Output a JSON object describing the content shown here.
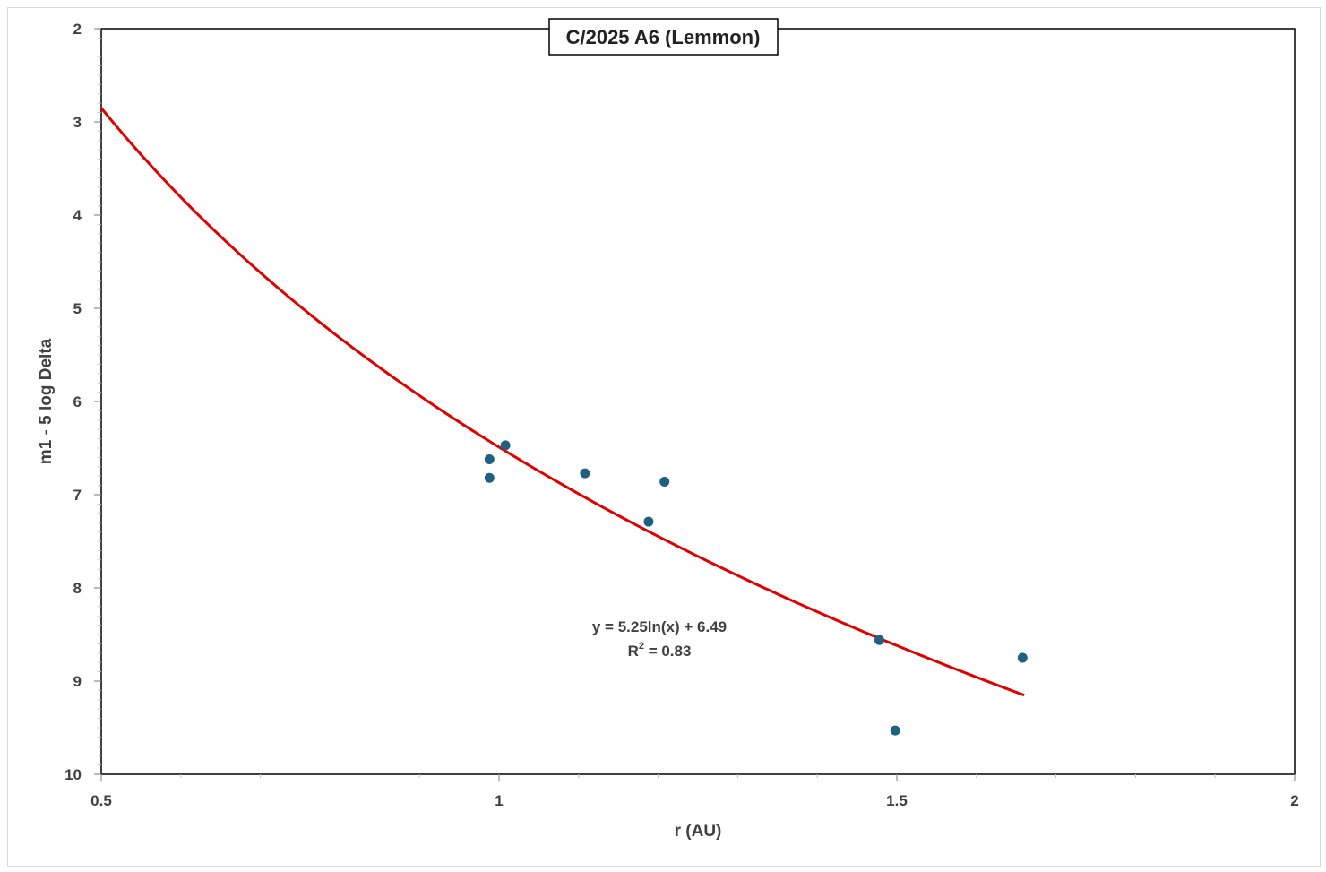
{
  "chart_data": {
    "type": "scatter",
    "title": "C/2025 A6 (Lemmon)",
    "xlabel": "r (AU)",
    "ylabel": "m1 - 5 log Delta",
    "xlim": [
      0.5,
      2
    ],
    "ylim": [
      2,
      10
    ],
    "y_inverted": true,
    "x_ticks": [
      "0.5",
      "1",
      "1.5",
      "2"
    ],
    "y_ticks": [
      "2",
      "3",
      "4",
      "5",
      "6",
      "7",
      "8",
      "9",
      "10"
    ],
    "grid": false,
    "legend": "none",
    "series": [
      {
        "x": [
          0.988,
          0.988,
          1.008,
          1.108,
          1.188,
          1.208,
          1.478,
          1.498,
          1.658
        ],
        "y": [
          6.62,
          6.82,
          6.47,
          6.77,
          7.29,
          6.86,
          8.56,
          9.53,
          8.75
        ],
        "color": "#1f5f7f"
      }
    ],
    "trendline": {
      "type": "log",
      "a": 5.25,
      "b": 6.49,
      "x_range": [
        0.5,
        1.66
      ],
      "equation": "y = 5.25ln(x) + 6.49",
      "r2_prefix": "R",
      "r2_sup": "2",
      "r2_value": " = 0.83",
      "color": "#e00000"
    }
  }
}
